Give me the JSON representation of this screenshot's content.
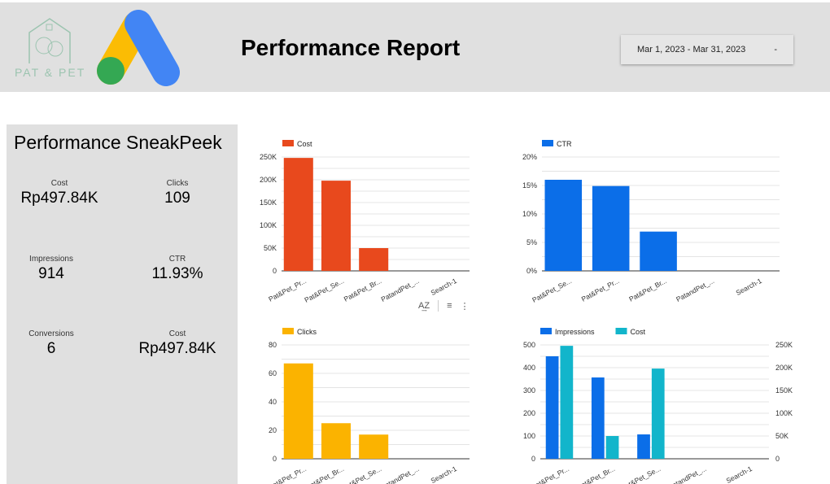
{
  "header": {
    "brand_text": "PAT & PET",
    "title": "Performance Report",
    "date_range": "Mar 1, 2023 - Mar 31, 2023",
    "date_caret": "-"
  },
  "panel": {
    "title": "Performance SneakPeek",
    "metrics": [
      {
        "label": "Cost",
        "value": "Rp497.84K"
      },
      {
        "label": "Clicks",
        "value": "109"
      },
      {
        "label": "Impressions",
        "value": "914"
      },
      {
        "label": "CTR",
        "value": "11.93%"
      },
      {
        "label": "Conversions",
        "value": "6"
      },
      {
        "label": "Cost",
        "value": "Rp497.84K"
      }
    ]
  },
  "chart_tools": {
    "sort": "A͢Z",
    "filter": "≡",
    "more": "⋮"
  },
  "chart_data": [
    {
      "type": "bar",
      "legend": [
        "Cost"
      ],
      "colors": [
        "#e8491d"
      ],
      "categories": [
        "Pat&Pet_Pr...",
        "Pat&Pet_Se...",
        "Pat&Pet_Br...",
        "PatandPet_...",
        "Search-1"
      ],
      "series": [
        {
          "name": "Cost",
          "values": [
            248000,
            198000,
            50000,
            0,
            0
          ]
        }
      ],
      "yticks": [
        "0",
        "50K",
        "100K",
        "150K",
        "200K",
        "250K"
      ],
      "ylim": [
        0,
        250000
      ]
    },
    {
      "type": "bar",
      "legend": [
        "CTR"
      ],
      "colors": [
        "#0b6ee8"
      ],
      "categories": [
        "Pat&Pet_Se...",
        "Pat&Pet_Pr...",
        "Pat&Pet_Br...",
        "PatandPet_...",
        "Search-1"
      ],
      "series": [
        {
          "name": "CTR",
          "values": [
            16,
            14.9,
            6.9,
            0,
            0
          ]
        }
      ],
      "yticks": [
        "0%",
        "5%",
        "10%",
        "15%",
        "20%"
      ],
      "ylim": [
        0,
        20
      ]
    },
    {
      "type": "bar",
      "legend": [
        "Clicks"
      ],
      "colors": [
        "#fbb300"
      ],
      "categories": [
        "Pat&Pet_Pr...",
        "Pat&Pet_Br...",
        "Pat&Pet_Se...",
        "PatandPet_...",
        "Search-1"
      ],
      "series": [
        {
          "name": "Clicks",
          "values": [
            67,
            25,
            17,
            0,
            0
          ]
        }
      ],
      "yticks": [
        "0",
        "20",
        "40",
        "60",
        "80"
      ],
      "ylim": [
        0,
        80
      ]
    },
    {
      "type": "bar",
      "legend": [
        "Impressions",
        "Cost"
      ],
      "colors": [
        "#0b6ee8",
        "#12b5cb"
      ],
      "categories": [
        "Pat&Pet_Pr...",
        "Pat&Pet_Br...",
        "Pat&Pet_Se...",
        "PatandPet_...",
        "Search-1"
      ],
      "series": [
        {
          "name": "Impressions",
          "values": [
            450,
            357,
            107,
            0,
            0
          ]
        },
        {
          "name": "Cost",
          "values": [
            248000,
            50000,
            198000,
            0,
            0
          ],
          "axis": "right"
        }
      ],
      "yticks": [
        "0",
        "100",
        "200",
        "300",
        "400",
        "500"
      ],
      "ylim": [
        0,
        500
      ],
      "y2ticks": [
        "0",
        "50K",
        "100K",
        "150K",
        "200K",
        "250K"
      ],
      "y2lim": [
        0,
        250000
      ]
    }
  ]
}
